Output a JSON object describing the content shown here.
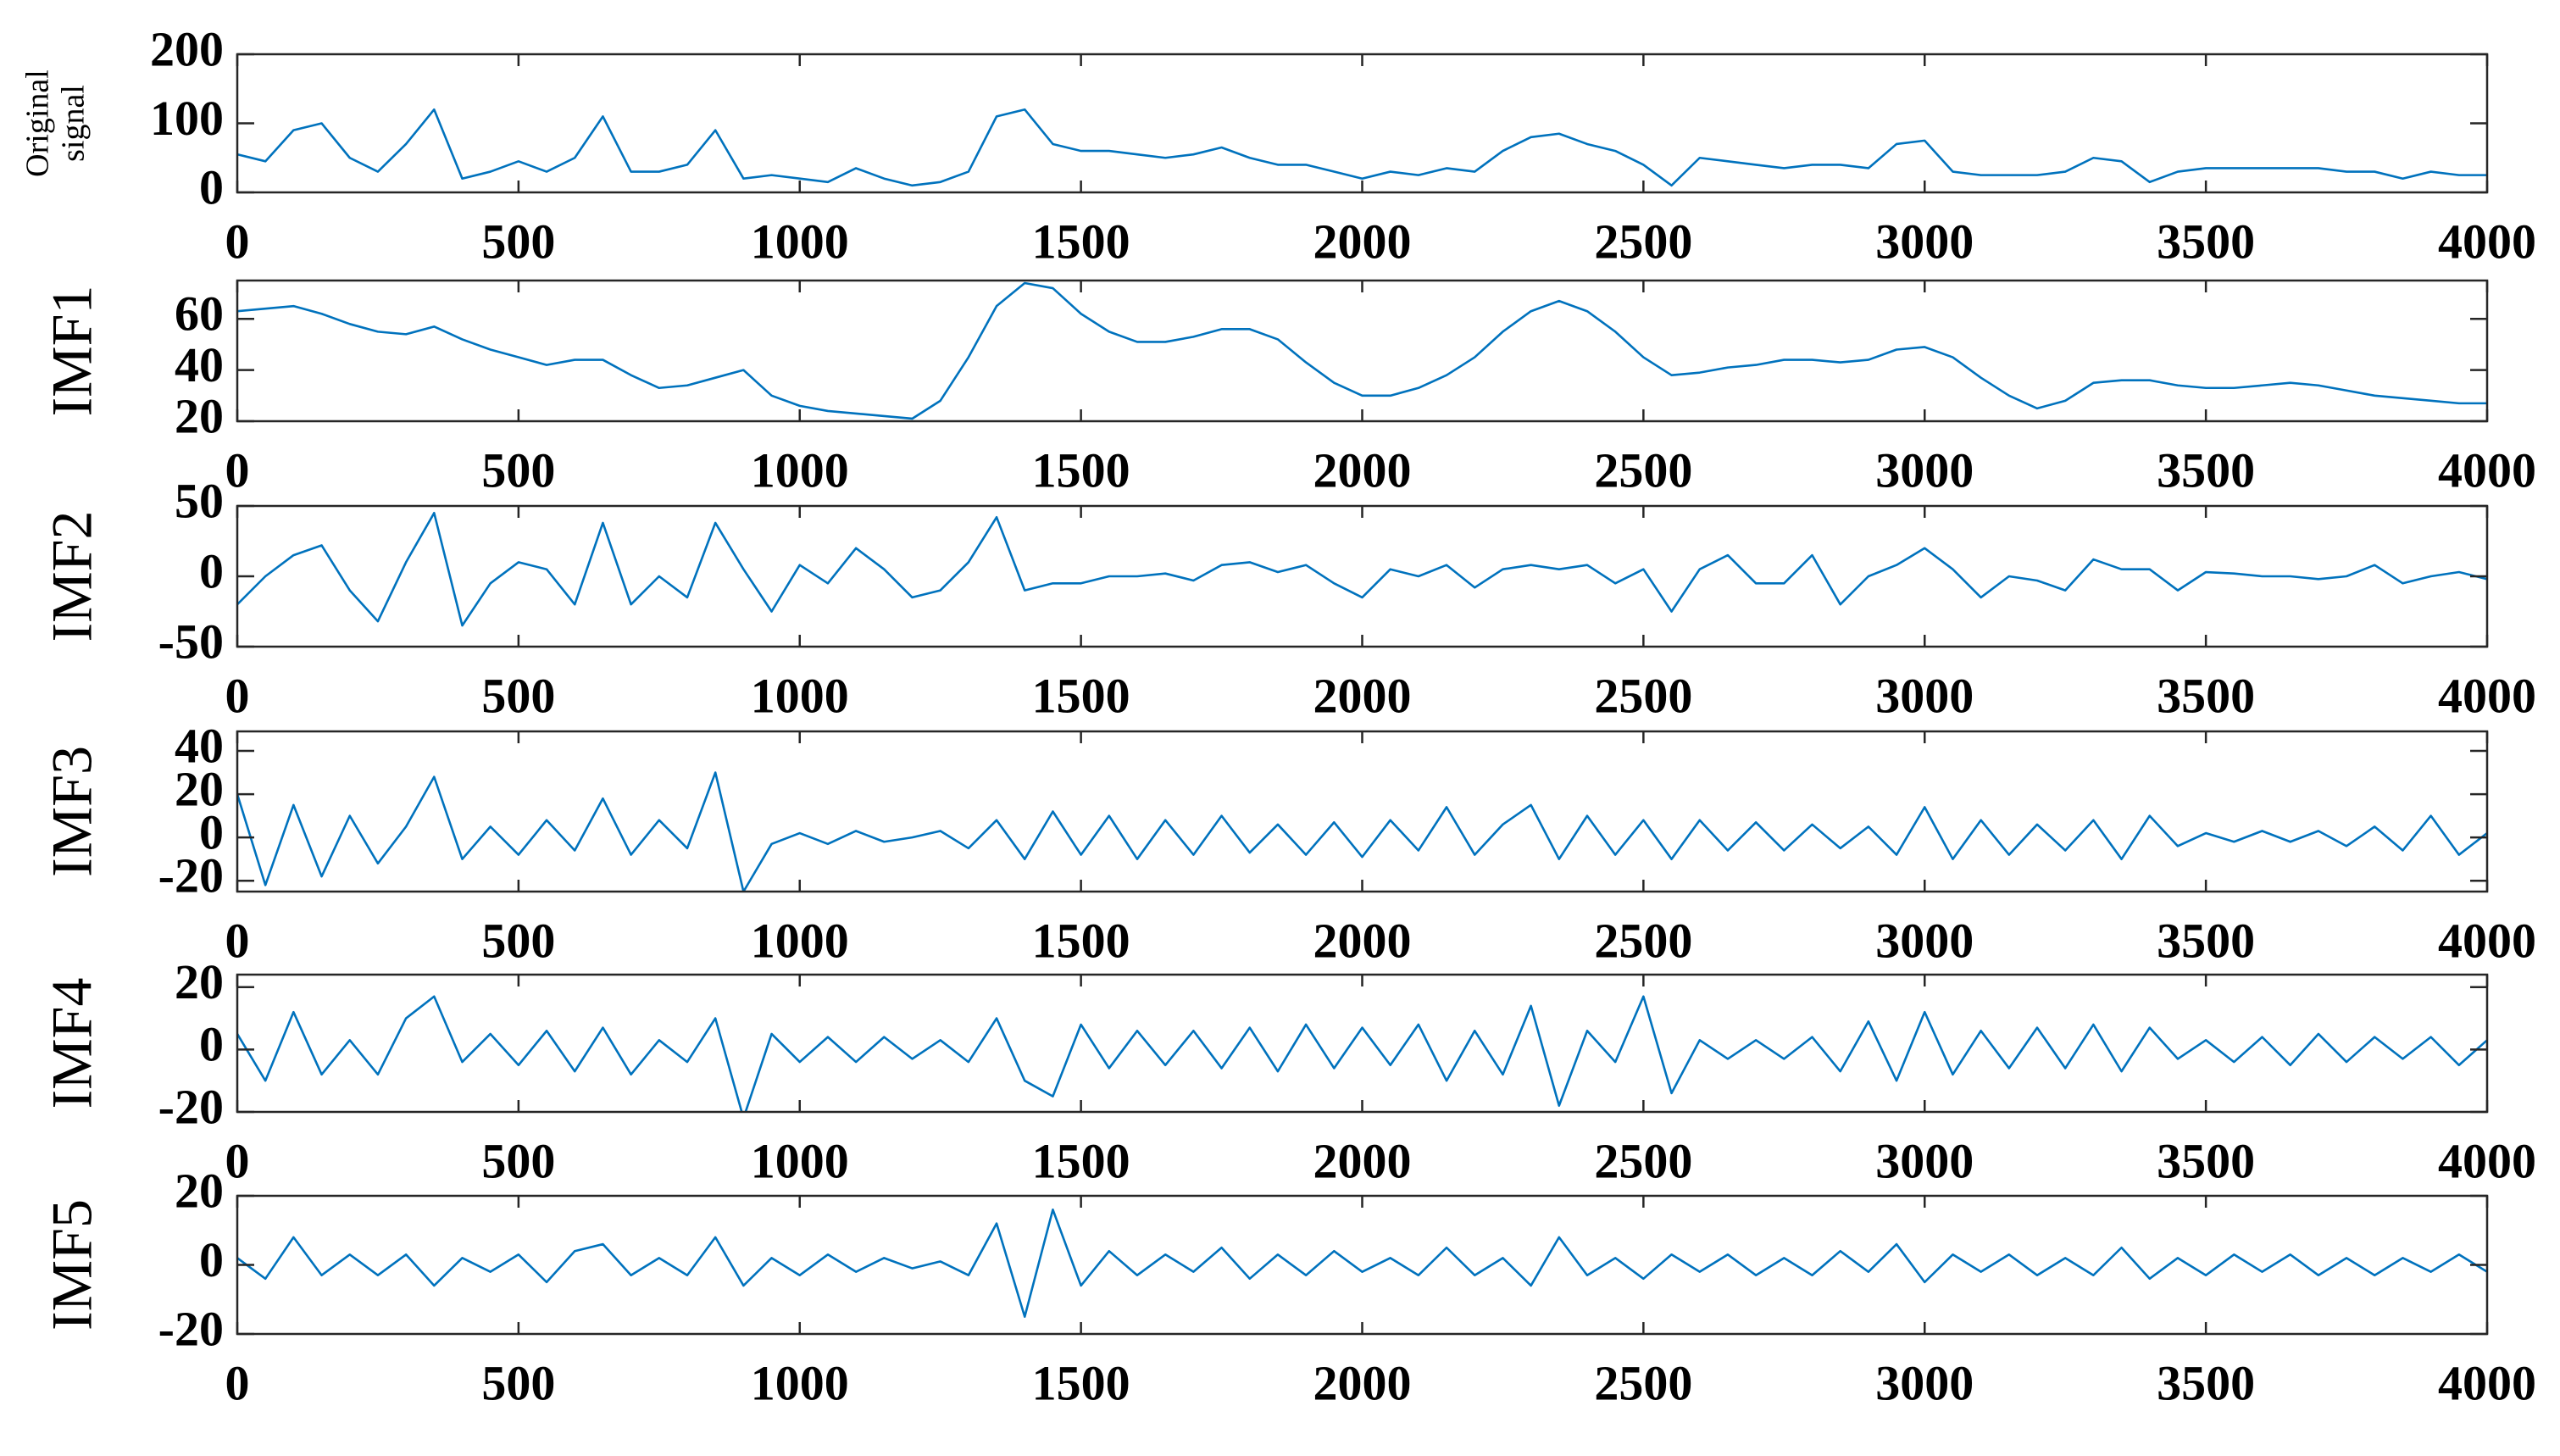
{
  "chart_data": [
    {
      "type": "line",
      "ylabel": [
        "Original",
        "signal"
      ],
      "color": "#0072bd",
      "xlim": [
        0,
        4000
      ],
      "xticks": [
        0,
        500,
        1000,
        1500,
        2000,
        2500,
        3000,
        3500,
        4000
      ],
      "ylim": [
        0,
        200
      ],
      "yticks": [
        0,
        100,
        200
      ],
      "x": [
        0,
        50,
        100,
        150,
        200,
        250,
        300,
        350,
        400,
        450,
        500,
        550,
        600,
        650,
        700,
        750,
        800,
        850,
        900,
        950,
        1000,
        1050,
        1100,
        1150,
        1200,
        1250,
        1300,
        1350,
        1400,
        1450,
        1500,
        1550,
        1600,
        1650,
        1700,
        1750,
        1800,
        1850,
        1900,
        1950,
        2000,
        2050,
        2100,
        2150,
        2200,
        2250,
        2300,
        2350,
        2400,
        2450,
        2500,
        2550,
        2600,
        2650,
        2700,
        2750,
        2800,
        2850,
        2900,
        2950,
        3000,
        3050,
        3100,
        3150,
        3200,
        3250,
        3300,
        3350,
        3400,
        3450,
        3500,
        3550,
        3600,
        3650,
        3700,
        3750,
        3800,
        3850,
        3900,
        3950,
        4000
      ],
      "values": [
        55,
        45,
        90,
        100,
        50,
        30,
        70,
        120,
        20,
        30,
        45,
        30,
        50,
        110,
        30,
        30,
        40,
        90,
        20,
        25,
        20,
        15,
        35,
        20,
        10,
        15,
        30,
        110,
        120,
        70,
        60,
        60,
        55,
        50,
        55,
        65,
        50,
        40,
        40,
        30,
        20,
        30,
        25,
        35,
        30,
        60,
        80,
        85,
        70,
        60,
        40,
        10,
        50,
        45,
        40,
        35,
        40,
        40,
        35,
        70,
        75,
        30,
        25,
        25,
        25,
        30,
        50,
        45,
        15,
        30,
        35,
        35,
        35,
        35,
        35,
        30,
        30,
        20,
        30,
        25,
        25
      ]
    },
    {
      "type": "line",
      "ylabel": "IMF1",
      "color": "#0072bd",
      "xlim": [
        0,
        4000
      ],
      "xticks": [
        0,
        500,
        1000,
        1500,
        2000,
        2500,
        3000,
        3500,
        4000
      ],
      "ylim": [
        20,
        75
      ],
      "yticks": [
        20,
        40,
        60
      ],
      "x": [
        0,
        50,
        100,
        150,
        200,
        250,
        300,
        350,
        400,
        450,
        500,
        550,
        600,
        650,
        700,
        750,
        800,
        850,
        900,
        950,
        1000,
        1050,
        1100,
        1150,
        1200,
        1250,
        1300,
        1350,
        1400,
        1450,
        1500,
        1550,
        1600,
        1650,
        1700,
        1750,
        1800,
        1850,
        1900,
        1950,
        2000,
        2050,
        2100,
        2150,
        2200,
        2250,
        2300,
        2350,
        2400,
        2450,
        2500,
        2550,
        2600,
        2650,
        2700,
        2750,
        2800,
        2850,
        2900,
        2950,
        3000,
        3050,
        3100,
        3150,
        3200,
        3250,
        3300,
        3350,
        3400,
        3450,
        3500,
        3550,
        3600,
        3650,
        3700,
        3750,
        3800,
        3850,
        3900,
        3950,
        4000
      ],
      "values": [
        63,
        64,
        65,
        62,
        58,
        55,
        54,
        57,
        52,
        48,
        45,
        42,
        44,
        44,
        38,
        33,
        34,
        37,
        40,
        30,
        26,
        24,
        23,
        22,
        21,
        28,
        45,
        65,
        74,
        72,
        62,
        55,
        51,
        51,
        53,
        56,
        56,
        52,
        43,
        35,
        30,
        30,
        33,
        38,
        45,
        55,
        63,
        67,
        63,
        55,
        45,
        38,
        39,
        41,
        42,
        44,
        44,
        43,
        44,
        48,
        49,
        45,
        37,
        30,
        25,
        28,
        35,
        36,
        36,
        34,
        33,
        33,
        34,
        35,
        34,
        32,
        30,
        29,
        28,
        27,
        27
      ]
    },
    {
      "type": "line",
      "ylabel": "IMF2",
      "color": "#0072bd",
      "xlim": [
        0,
        4000
      ],
      "xticks": [
        0,
        500,
        1000,
        1500,
        2000,
        2500,
        3000,
        3500,
        4000
      ],
      "ylim": [
        -50,
        50
      ],
      "yticks": [
        -50,
        0,
        50
      ],
      "x": [
        0,
        50,
        100,
        150,
        200,
        250,
        300,
        350,
        400,
        450,
        500,
        550,
        600,
        650,
        700,
        750,
        800,
        850,
        900,
        950,
        1000,
        1050,
        1100,
        1150,
        1200,
        1250,
        1300,
        1350,
        1400,
        1450,
        1500,
        1550,
        1600,
        1650,
        1700,
        1750,
        1800,
        1850,
        1900,
        1950,
        2000,
        2050,
        2100,
        2150,
        2200,
        2250,
        2300,
        2350,
        2400,
        2450,
        2500,
        2550,
        2600,
        2650,
        2700,
        2750,
        2800,
        2850,
        2900,
        2950,
        3000,
        3050,
        3100,
        3150,
        3200,
        3250,
        3300,
        3350,
        3400,
        3450,
        3500,
        3550,
        3600,
        3650,
        3700,
        3750,
        3800,
        3850,
        3900,
        3950,
        4000
      ],
      "values": [
        -20,
        0,
        15,
        22,
        -10,
        -32,
        10,
        45,
        -35,
        -5,
        10,
        5,
        -20,
        38,
        -20,
        0,
        -15,
        38,
        5,
        -25,
        8,
        -5,
        20,
        5,
        -15,
        -10,
        10,
        42,
        -10,
        -5,
        -5,
        0,
        0,
        2,
        -3,
        8,
        10,
        3,
        8,
        -5,
        -15,
        5,
        0,
        8,
        -8,
        5,
        8,
        5,
        8,
        -5,
        5,
        -25,
        5,
        15,
        -5,
        -5,
        15,
        -20,
        0,
        8,
        20,
        5,
        -15,
        0,
        -3,
        -10,
        12,
        5,
        5,
        -10,
        3,
        2,
        0,
        0,
        -2,
        0,
        8,
        -5,
        0,
        3,
        -2
      ]
    },
    {
      "type": "line",
      "ylabel": "IMF3",
      "color": "#0072bd",
      "xlim": [
        0,
        4000
      ],
      "xticks": [
        0,
        500,
        1000,
        1500,
        2000,
        2500,
        3000,
        3500,
        4000
      ],
      "ylim": [
        -25,
        49
      ],
      "yticks": [
        -20,
        0,
        20,
        40
      ],
      "x": [
        0,
        50,
        100,
        150,
        200,
        250,
        300,
        350,
        400,
        450,
        500,
        550,
        600,
        650,
        700,
        750,
        800,
        850,
        900,
        950,
        1000,
        1050,
        1100,
        1150,
        1200,
        1250,
        1300,
        1350,
        1400,
        1450,
        1500,
        1550,
        1600,
        1650,
        1700,
        1750,
        1800,
        1850,
        1900,
        1950,
        2000,
        2050,
        2100,
        2150,
        2200,
        2250,
        2300,
        2350,
        2400,
        2450,
        2500,
        2550,
        2600,
        2650,
        2700,
        2750,
        2800,
        2850,
        2900,
        2950,
        3000,
        3050,
        3100,
        3150,
        3200,
        3250,
        3300,
        3350,
        3400,
        3450,
        3500,
        3550,
        3600,
        3650,
        3700,
        3750,
        3800,
        3850,
        3900,
        3950,
        4000
      ],
      "values": [
        20,
        -22,
        15,
        -18,
        10,
        -12,
        5,
        28,
        -10,
        5,
        -8,
        8,
        -6,
        18,
        -8,
        8,
        -5,
        30,
        -25,
        -3,
        2,
        -3,
        3,
        -2,
        0,
        3,
        -5,
        8,
        -10,
        12,
        -8,
        10,
        -10,
        8,
        -8,
        10,
        -7,
        6,
        -8,
        7,
        -9,
        8,
        -6,
        14,
        -8,
        6,
        15,
        -10,
        10,
        -8,
        8,
        -10,
        8,
        -6,
        7,
        -6,
        6,
        -5,
        5,
        -8,
        14,
        -10,
        8,
        -8,
        6,
        -6,
        8,
        -10,
        10,
        -4,
        2,
        -2,
        3,
        -2,
        3,
        -4,
        5,
        -6,
        10,
        -8,
        2
      ]
    },
    {
      "type": "line",
      "ylabel": "IMF4",
      "color": "#0072bd",
      "xlim": [
        0,
        4000
      ],
      "xticks": [
        0,
        500,
        1000,
        1500,
        2000,
        2500,
        3000,
        3500,
        4000
      ],
      "ylim": [
        -20,
        24
      ],
      "yticks": [
        -20,
        0,
        20
      ],
      "x": [
        0,
        50,
        100,
        150,
        200,
        250,
        300,
        350,
        400,
        450,
        500,
        550,
        600,
        650,
        700,
        750,
        800,
        850,
        900,
        950,
        1000,
        1050,
        1100,
        1150,
        1200,
        1250,
        1300,
        1350,
        1400,
        1450,
        1500,
        1550,
        1600,
        1650,
        1700,
        1750,
        1800,
        1850,
        1900,
        1950,
        2000,
        2050,
        2100,
        2150,
        2200,
        2250,
        2300,
        2350,
        2400,
        2450,
        2500,
        2550,
        2600,
        2650,
        2700,
        2750,
        2800,
        2850,
        2900,
        2950,
        3000,
        3050,
        3100,
        3150,
        3200,
        3250,
        3300,
        3350,
        3400,
        3450,
        3500,
        3550,
        3600,
        3650,
        3700,
        3750,
        3800,
        3850,
        3900,
        3950,
        4000
      ],
      "values": [
        5,
        -10,
        12,
        -8,
        3,
        -8,
        10,
        17,
        -4,
        5,
        -5,
        6,
        -7,
        7,
        -8,
        3,
        -4,
        10,
        -22,
        5,
        -4,
        4,
        -4,
        4,
        -3,
        3,
        -4,
        10,
        -10,
        -15,
        8,
        -6,
        6,
        -5,
        6,
        -6,
        7,
        -7,
        8,
        -6,
        7,
        -5,
        8,
        -10,
        6,
        -8,
        14,
        -18,
        6,
        -4,
        17,
        -14,
        3,
        -3,
        3,
        -3,
        4,
        -7,
        9,
        -10,
        12,
        -8,
        6,
        -6,
        7,
        -6,
        8,
        -7,
        7,
        -3,
        3,
        -4,
        4,
        -5,
        5,
        -4,
        4,
        -3,
        4,
        -5,
        3
      ]
    },
    {
      "type": "line",
      "ylabel": "IMF5",
      "color": "#0072bd",
      "xlim": [
        0,
        4000
      ],
      "xticks": [
        0,
        500,
        1000,
        1500,
        2000,
        2500,
        3000,
        3500,
        4000
      ],
      "ylim": [
        -20,
        20
      ],
      "yticks": [
        -20,
        0,
        20
      ],
      "x": [
        0,
        50,
        100,
        150,
        200,
        250,
        300,
        350,
        400,
        450,
        500,
        550,
        600,
        650,
        700,
        750,
        800,
        850,
        900,
        950,
        1000,
        1050,
        1100,
        1150,
        1200,
        1250,
        1300,
        1350,
        1400,
        1450,
        1500,
        1550,
        1600,
        1650,
        1700,
        1750,
        1800,
        1850,
        1900,
        1950,
        2000,
        2050,
        2100,
        2150,
        2200,
        2250,
        2300,
        2350,
        2400,
        2450,
        2500,
        2550,
        2600,
        2650,
        2700,
        2750,
        2800,
        2850,
        2900,
        2950,
        3000,
        3050,
        3100,
        3150,
        3200,
        3250,
        3300,
        3350,
        3400,
        3450,
        3500,
        3550,
        3600,
        3650,
        3700,
        3750,
        3800,
        3850,
        3900,
        3950,
        4000
      ],
      "values": [
        2,
        -4,
        8,
        -3,
        3,
        -3,
        3,
        -6,
        2,
        -2,
        3,
        -5,
        4,
        6,
        -3,
        2,
        -3,
        8,
        -6,
        2,
        -3,
        3,
        -2,
        2,
        -1,
        1,
        -3,
        12,
        -15,
        16,
        -6,
        4,
        -3,
        3,
        -2,
        5,
        -4,
        3,
        -3,
        4,
        -2,
        2,
        -3,
        5,
        -3,
        2,
        -6,
        8,
        -3,
        2,
        -4,
        3,
        -2,
        3,
        -3,
        2,
        -3,
        4,
        -2,
        6,
        -5,
        3,
        -2,
        3,
        -3,
        2,
        -3,
        5,
        -4,
        2,
        -3,
        3,
        -2,
        3,
        -3,
        2,
        -3,
        2,
        -2,
        3,
        -2
      ]
    }
  ]
}
